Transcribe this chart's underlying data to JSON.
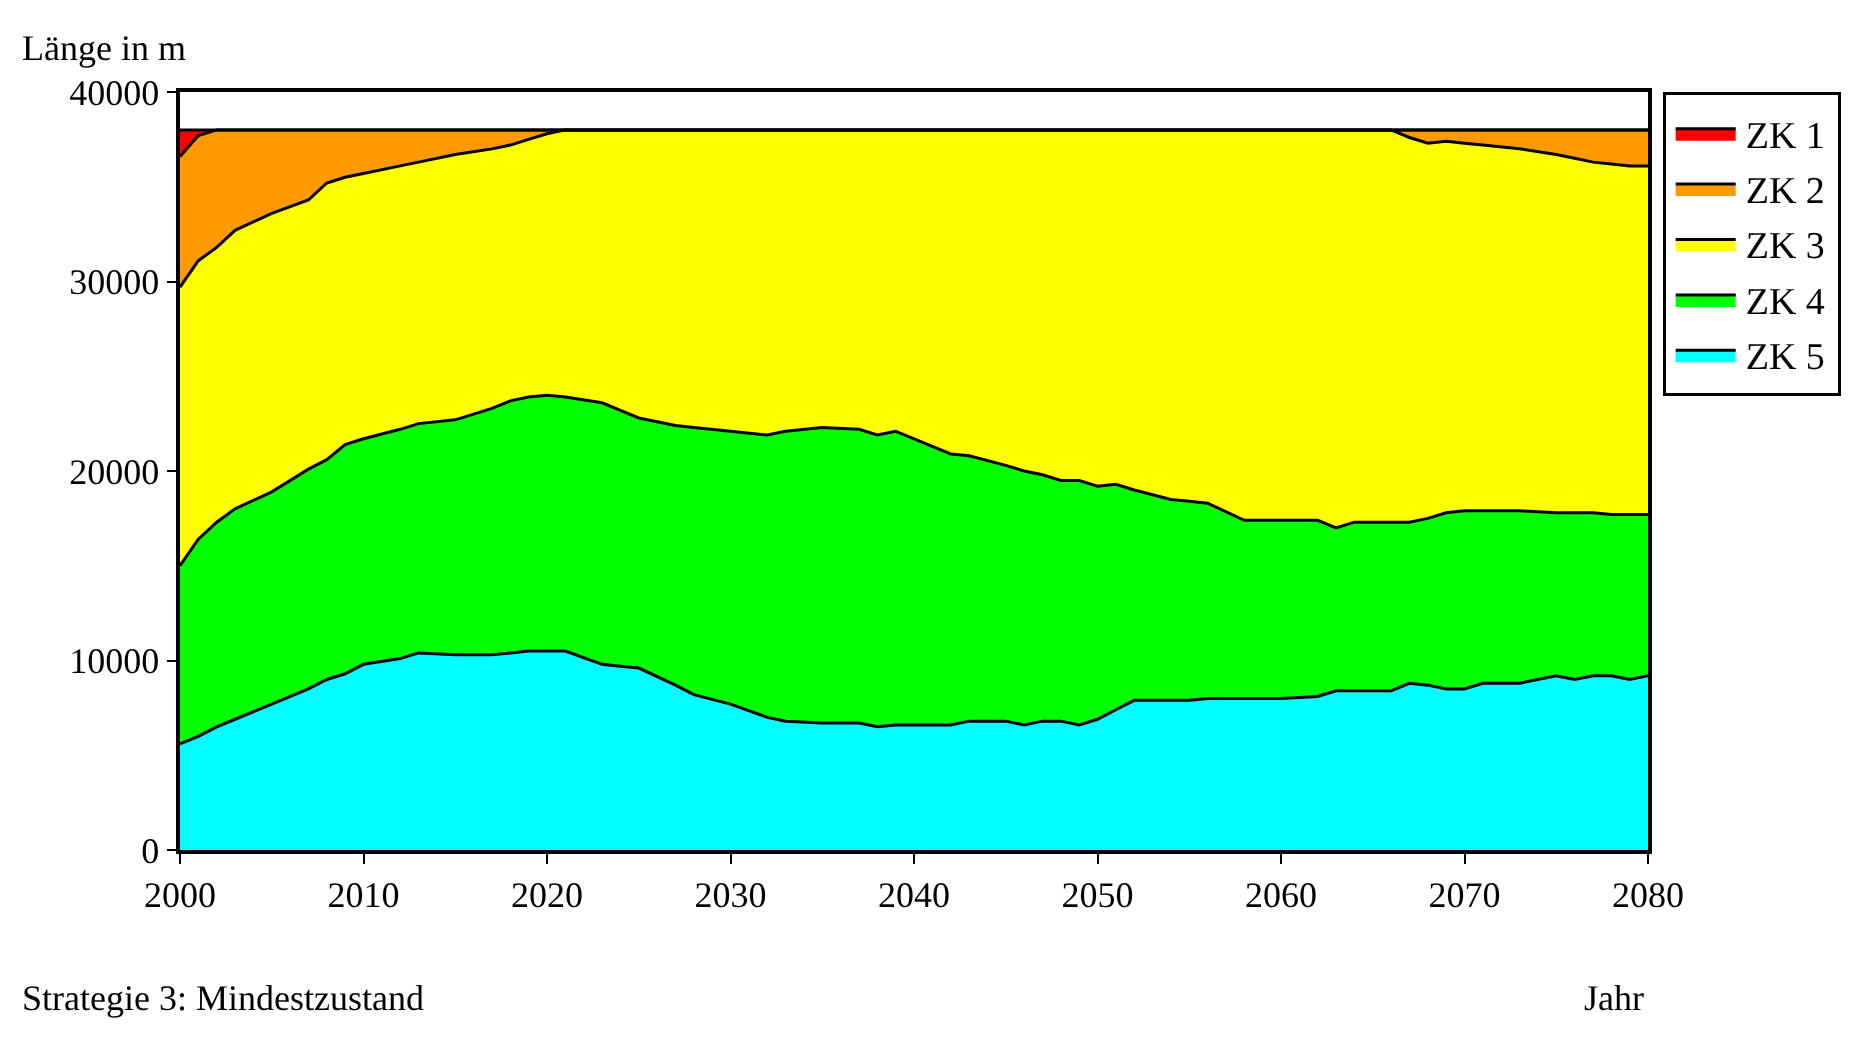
{
  "chart_data": {
    "type": "area",
    "stacked": true,
    "ylabel": "Länge in m",
    "xlabel": "Jahr",
    "annotations": [
      "Strategie 3: Mindestzustand"
    ],
    "x": [
      2000,
      2001,
      2002,
      2003,
      2005,
      2007,
      2008,
      2009,
      2010,
      2012,
      2013,
      2015,
      2017,
      2018,
      2019,
      2020,
      2021,
      2023,
      2024,
      2025,
      2027,
      2028,
      2030,
      2032,
      2033,
      2035,
      2037,
      2038,
      2039,
      2040,
      2042,
      2043,
      2045,
      2046,
      2047,
      2048,
      2049,
      2050,
      2051,
      2052,
      2054,
      2055,
      2056,
      2058,
      2060,
      2062,
      2063,
      2064,
      2066,
      2067,
      2068,
      2069,
      2070,
      2071,
      2073,
      2075,
      2076,
      2077,
      2078,
      2079,
      2080
    ],
    "series": [
      {
        "name": "ZK 5",
        "color": "#00ffff",
        "values": [
          5600,
          6000,
          6500,
          6900,
          7700,
          8500,
          9000,
          9300,
          9800,
          10100,
          10400,
          10300,
          10300,
          10400,
          10500,
          10500,
          10500,
          9800,
          9700,
          9600,
          8700,
          8200,
          7700,
          7000,
          6800,
          6700,
          6700,
          6500,
          6600,
          6600,
          6600,
          6800,
          6800,
          6600,
          6800,
          6800,
          6600,
          6900,
          7400,
          7900,
          7900,
          7900,
          8000,
          8000,
          8000,
          8100,
          8400,
          8400,
          8400,
          8800,
          8700,
          8500,
          8500,
          8800,
          8800,
          9200,
          9000,
          9200,
          9200,
          9000,
          9200
        ]
      },
      {
        "name": "ZK 4",
        "color": "#00ff00",
        "values": [
          9400,
          10400,
          10800,
          11100,
          11200,
          11600,
          11600,
          12100,
          11900,
          12100,
          12100,
          12400,
          13000,
          13300,
          13400,
          13500,
          13400,
          13800,
          13500,
          13200,
          13700,
          14100,
          14400,
          14900,
          15300,
          15600,
          15500,
          15400,
          15500,
          15100,
          14300,
          14000,
          13500,
          13400,
          13000,
          12700,
          12900,
          12300,
          11900,
          11100,
          10600,
          10500,
          10300,
          9400,
          9400,
          9300,
          8600,
          8900,
          8900,
          8500,
          8800,
          9300,
          9400,
          9100,
          9100,
          8600,
          8800,
          8600,
          8500,
          8700,
          8500
        ]
      },
      {
        "name": "ZK 3",
        "color": "#ffff00",
        "values": [
          14700,
          14700,
          14500,
          14700,
          14700,
          14200,
          14600,
          14100,
          14000,
          13900,
          13800,
          14000,
          13700,
          13500,
          13600,
          13800,
          14100,
          14400,
          14800,
          15200,
          15600,
          15700,
          15900,
          16100,
          15900,
          15700,
          15800,
          16100,
          15900,
          16300,
          17100,
          17200,
          17700,
          18000,
          18200,
          18500,
          18500,
          18800,
          18700,
          19000,
          19500,
          19600,
          19700,
          20600,
          20600,
          20600,
          21000,
          20700,
          20700,
          20300,
          19800,
          19600,
          19400,
          19300,
          19100,
          18900,
          18700,
          18500,
          18500,
          18400,
          18400
        ]
      },
      {
        "name": "ZK 2",
        "color": "#ff9900",
        "values": [
          6900,
          6600,
          6200,
          5300,
          4400,
          3700,
          2800,
          2500,
          2300,
          1900,
          1700,
          1300,
          1000,
          800,
          500,
          200,
          0,
          0,
          0,
          0,
          0,
          0,
          0,
          0,
          0,
          0,
          0,
          0,
          0,
          0,
          0,
          0,
          0,
          0,
          0,
          0,
          0,
          0,
          0,
          0,
          0,
          0,
          0,
          0,
          0,
          0,
          0,
          0,
          0,
          400,
          700,
          600,
          700,
          800,
          1000,
          1300,
          1500,
          1700,
          1800,
          1900,
          1900
        ]
      },
      {
        "name": "ZK 1",
        "color": "#ff0000",
        "values": [
          1400,
          300,
          0,
          0,
          0,
          0,
          0,
          0,
          0,
          0,
          0,
          0,
          0,
          0,
          0,
          0,
          0,
          0,
          0,
          0,
          0,
          0,
          0,
          0,
          0,
          0,
          0,
          0,
          0,
          0,
          0,
          0,
          0,
          0,
          0,
          0,
          0,
          0,
          0,
          0,
          0,
          0,
          0,
          0,
          0,
          0,
          0,
          0,
          0,
          0,
          0,
          0,
          0,
          0,
          0,
          0,
          0,
          0,
          0,
          0,
          0
        ]
      }
    ],
    "xlim": [
      2000,
      2080
    ],
    "xticks": [
      2000,
      2010,
      2020,
      2030,
      2040,
      2050,
      2060,
      2070,
      2080
    ],
    "ylim": [
      0,
      40000
    ],
    "yticks": [
      0,
      10000,
      20000,
      30000,
      40000
    ],
    "legend": "right"
  }
}
